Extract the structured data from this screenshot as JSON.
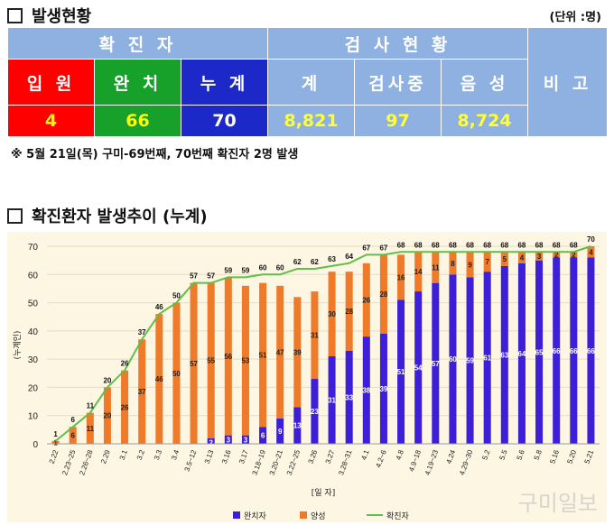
{
  "section1_title": "발생현황",
  "unit": "(단위 :명)",
  "table": {
    "confirmed_header": "확 진 자",
    "test_header": "검 사 현 황",
    "remark_header": "비 고",
    "sub": {
      "hospitalized": "입 원",
      "recovered": "완 치",
      "cumulative": "누 계",
      "total": "계",
      "testing": "검사중",
      "negative": "음 성"
    },
    "values": {
      "hospitalized": "4",
      "recovered": "66",
      "cumulative": "70",
      "total": "8,821",
      "testing": "97",
      "negative": "8,724"
    }
  },
  "note": "※ 5월 21일(목) 구미-69번째, 70번째 확진자 2명 발생",
  "section2_title": "확진환자 발생추이 (누계)",
  "watermark": "구미일보",
  "colors": {
    "recovered": "#3c1fd6",
    "positive": "#ee7a2a",
    "cumulative": "#5fbf49",
    "bg": "#fdf6e3"
  },
  "chart_data": {
    "type": "bar",
    "stacked": true,
    "categories": [
      "2.22",
      "2.23~25",
      "2.26~28",
      "2.29",
      "3.1",
      "3.2",
      "3.3",
      "3.4",
      "3.5~12",
      "3.13",
      "3.16",
      "3.17",
      "3.18~19",
      "3.20~21",
      "3.22~25",
      "3.26",
      "3.27",
      "3.28~31",
      "4.1",
      "4.2~6",
      "4.8",
      "4.9~18",
      "4.19~23",
      "4.24",
      "4.29~30",
      "5.2",
      "5.5",
      "5.6",
      "5.8",
      "5.16",
      "5.20",
      "5.21"
    ],
    "series": [
      {
        "name": "완치자",
        "values": [
          0,
          0,
          0,
          0,
          0,
          0,
          0,
          0,
          0,
          2,
          3,
          3,
          6,
          9,
          13,
          23,
          31,
          33,
          38,
          39,
          51,
          54,
          57,
          60,
          59,
          61,
          63,
          64,
          65,
          66,
          66,
          66
        ]
      },
      {
        "name": "양성",
        "values": [
          1,
          6,
          11,
          20,
          26,
          37,
          46,
          50,
          57,
          55,
          56,
          53,
          51,
          47,
          39,
          31,
          30,
          28,
          26,
          28,
          16,
          14,
          11,
          8,
          9,
          7,
          5,
          4,
          3,
          2,
          2,
          4
        ]
      },
      {
        "name": "확진자",
        "type": "line",
        "values": [
          1,
          6,
          11,
          20,
          26,
          37,
          46,
          50,
          57,
          57,
          59,
          59,
          60,
          60,
          62,
          62,
          63,
          64,
          67,
          67,
          68,
          68,
          68,
          68,
          68,
          68,
          68,
          68,
          68,
          68,
          68,
          70
        ]
      }
    ],
    "ylabel": "(누계인)",
    "xlabel": "[일 자]",
    "ylim": [
      0,
      70
    ],
    "yticks": [
      0,
      10,
      20,
      30,
      40,
      50,
      60,
      70
    ],
    "grid": true,
    "legend": "bottom"
  }
}
